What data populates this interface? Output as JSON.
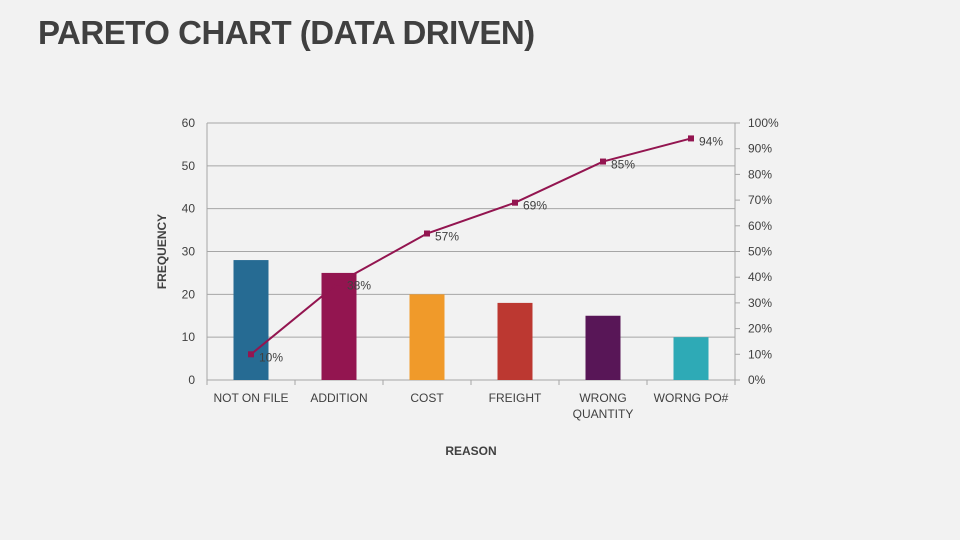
{
  "title": "PARETO CHART (DATA DRIVEN)",
  "chart_data": {
    "type": "bar",
    "categories": [
      "NOT ON FILE",
      "ADDITION",
      "COST",
      "FREIGHT",
      "WRONG QUANTITY",
      "WORNG PO#"
    ],
    "category_lines": [
      [
        "NOT ON FILE"
      ],
      [
        "ADDITION"
      ],
      [
        "COST"
      ],
      [
        "FREIGHT"
      ],
      [
        "WRONG",
        "QUANTITY"
      ],
      [
        "WORNG PO#"
      ]
    ],
    "values": [
      28,
      25,
      20,
      18,
      15,
      10
    ],
    "bar_colors": [
      "#266b93",
      "#931550",
      "#f09a2a",
      "#bc3831",
      "#581657",
      "#2eaab6"
    ],
    "line": {
      "values": [
        10,
        38,
        57,
        69,
        85,
        94
      ],
      "labels": [
        "10%",
        "38%",
        "57%",
        "69%",
        "85%",
        "94%"
      ],
      "color": "#931550",
      "axis": "secondary"
    },
    "xlabel": "REASON",
    "ylabel": "FREQUENCY",
    "ylim": [
      0,
      60
    ],
    "yticks": [
      "0",
      "10",
      "20",
      "30",
      "40",
      "50",
      "60"
    ],
    "y2lim": [
      0,
      100
    ],
    "y2ticks": [
      "0%",
      "10%",
      "20%",
      "30%",
      "40%",
      "50%",
      "60%",
      "70%",
      "80%",
      "90%",
      "100%"
    ],
    "grid": true,
    "legend": "none"
  }
}
